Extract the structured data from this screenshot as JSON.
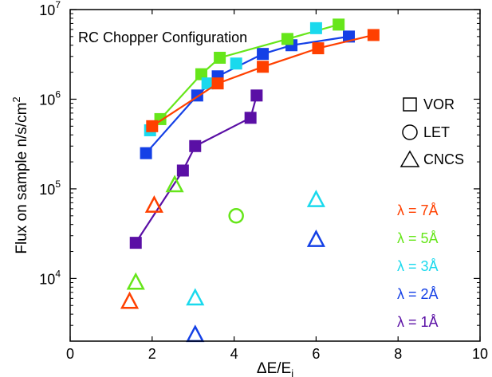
{
  "chart_data": {
    "type": "scatter",
    "title": "RC Chopper Configuration",
    "xlabel": "ΔE/E",
    "xlabel_sub": "i",
    "ylabel": "Flux on sample n/s/cm",
    "ylabel_sup": "2",
    "xlim": [
      0,
      10
    ],
    "ylim": [
      2000,
      10000000
    ],
    "yscale": "log",
    "x_ticks": [
      0,
      2,
      4,
      6,
      8,
      10
    ],
    "y_ticks": [
      {
        "value": 10000,
        "base": "10",
        "exp": "4"
      },
      {
        "value": 100000,
        "base": "10",
        "exp": "5"
      },
      {
        "value": 1000000,
        "base": "10",
        "exp": "6"
      },
      {
        "value": 10000000,
        "base": "10",
        "exp": "7"
      }
    ],
    "grid": false,
    "colors": {
      "7": "#ff4000",
      "5": "#66e61a",
      "3": "#1ad9ed",
      "2": "#1440e6",
      "1": "#5a0fa5"
    },
    "instrument_legend": [
      {
        "marker": "square",
        "label": "VOR"
      },
      {
        "marker": "circle",
        "label": "LET"
      },
      {
        "marker": "triangle",
        "label": "CNCS"
      }
    ],
    "wavelength_legend": [
      {
        "key": "7",
        "label": "λ = 7Å"
      },
      {
        "key": "5",
        "label": "λ = 5Å"
      },
      {
        "key": "3",
        "label": "λ = 3Å"
      },
      {
        "key": "2",
        "label": "λ = 2Å"
      },
      {
        "key": "1",
        "label": "λ = 1Å"
      }
    ],
    "series": [
      {
        "instrument": "VOR",
        "marker": "square",
        "line": true,
        "color_key": "2",
        "points": [
          [
            1.85,
            250000
          ],
          [
            3.1,
            1100000
          ],
          [
            3.6,
            1800000
          ],
          [
            4.7,
            3200000
          ],
          [
            5.4,
            4000000
          ],
          [
            6.8,
            5000000
          ]
        ]
      },
      {
        "instrument": "VOR",
        "marker": "square",
        "line": true,
        "color_key": "5",
        "points": [
          [
            2.2,
            600000
          ],
          [
            3.2,
            1900000
          ],
          [
            3.65,
            2900000
          ],
          [
            5.3,
            4700000
          ],
          [
            6.55,
            6800000
          ]
        ]
      },
      {
        "instrument": "VOR",
        "marker": "square",
        "line": false,
        "color_key": "3",
        "points": [
          [
            1.95,
            450000
          ],
          [
            3.35,
            1500000
          ],
          [
            4.05,
            2500000
          ],
          [
            6.0,
            6200000
          ]
        ]
      },
      {
        "instrument": "VOR",
        "marker": "square",
        "line": true,
        "color_key": "7",
        "points": [
          [
            2.0,
            500000
          ],
          [
            3.6,
            1500000
          ],
          [
            4.7,
            2300000
          ],
          [
            6.05,
            3700000
          ],
          [
            7.4,
            5200000
          ]
        ]
      },
      {
        "instrument": "VOR",
        "marker": "square",
        "line": true,
        "color_key": "1",
        "points": [
          [
            1.6,
            25000
          ],
          [
            2.75,
            160000
          ],
          [
            3.05,
            300000
          ],
          [
            4.4,
            620000
          ],
          [
            4.55,
            1100000
          ]
        ]
      },
      {
        "instrument": "LET",
        "marker": "circle",
        "line": false,
        "color_key": "5",
        "points": [
          [
            4.05,
            50000
          ]
        ]
      },
      {
        "instrument": "CNCS",
        "marker": "triangle",
        "line": false,
        "color_key": "7",
        "points": [
          [
            1.45,
            5500
          ],
          [
            2.05,
            65000
          ]
        ]
      },
      {
        "instrument": "CNCS",
        "marker": "triangle",
        "line": false,
        "color_key": "5",
        "points": [
          [
            1.6,
            9000
          ],
          [
            2.55,
            110000
          ]
        ]
      },
      {
        "instrument": "CNCS",
        "marker": "triangle",
        "line": false,
        "color_key": "3",
        "points": [
          [
            3.05,
            6000
          ],
          [
            6.0,
            75000
          ]
        ]
      },
      {
        "instrument": "CNCS",
        "marker": "triangle",
        "line": false,
        "color_key": "2",
        "points": [
          [
            3.05,
            2350
          ],
          [
            6.0,
            27000
          ]
        ]
      }
    ]
  }
}
